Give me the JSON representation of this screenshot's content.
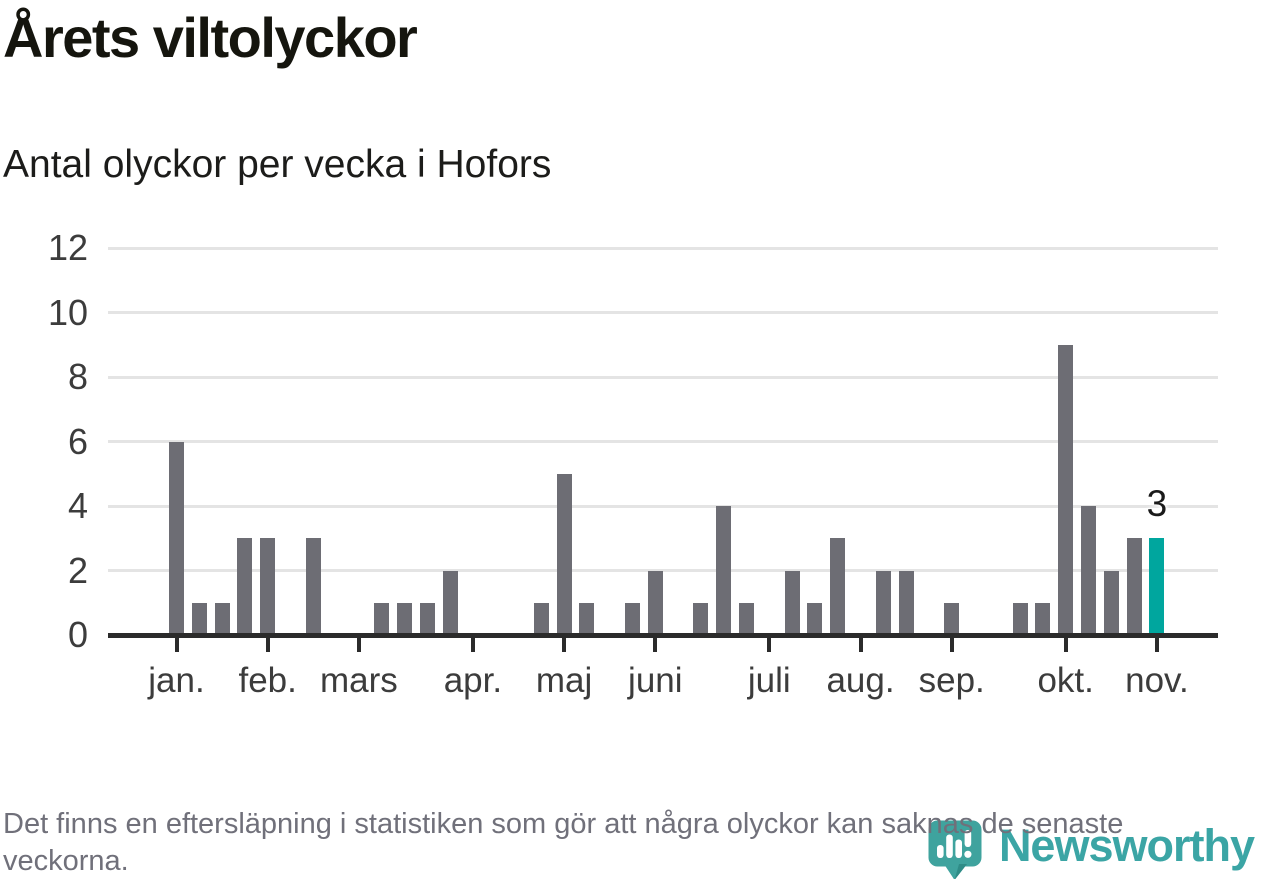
{
  "header": {
    "title": "Årets viltolyckor",
    "subtitle": "Antal olyckor per vecka i Hofors"
  },
  "footer": {
    "note": "Det finns en eftersläpning i statistiken som gör att några olyckor kan saknas de senaste veckorna."
  },
  "logo": {
    "brand": "Newsworthy",
    "icon": "speech-bubble-bar-chart-icon"
  },
  "chart_data": {
    "type": "bar",
    "title": "Årets viltolyckor",
    "subtitle": "Antal olyckor per vecka i Hofors",
    "x_unit": "week",
    "first_week": 1,
    "values": [
      6,
      1,
      1,
      3,
      3,
      0,
      3,
      0,
      0,
      1,
      1,
      1,
      2,
      0,
      0,
      0,
      1,
      5,
      1,
      0,
      1,
      2,
      0,
      1,
      4,
      1,
      0,
      2,
      1,
      3,
      0,
      2,
      2,
      0,
      1,
      0,
      0,
      1,
      1,
      9,
      4,
      2,
      3,
      3
    ],
    "highlight_week": 44,
    "annotation": {
      "text": "3",
      "week": 44,
      "value": 3
    },
    "month_ticks": [
      {
        "label": "jan.",
        "week": 1
      },
      {
        "label": "feb.",
        "week": 5
      },
      {
        "label": "mars",
        "week": 9
      },
      {
        "label": "apr.",
        "week": 14
      },
      {
        "label": "maj",
        "week": 18
      },
      {
        "label": "juni",
        "week": 22
      },
      {
        "label": "juli",
        "week": 27
      },
      {
        "label": "aug.",
        "week": 31
      },
      {
        "label": "sep.",
        "week": 35
      },
      {
        "label": "okt.",
        "week": 40
      },
      {
        "label": "nov.",
        "week": 44
      }
    ],
    "y_ticks": [
      0,
      2,
      4,
      6,
      8,
      10,
      12
    ],
    "ylim": [
      0,
      12
    ],
    "grid": true,
    "legend": "none",
    "colors": {
      "bar": "#6d6d74",
      "highlight": "#00a69e",
      "gridline": "#e4e4e4",
      "axis": "#2b2b2b",
      "tick_label": "#3c3c3c",
      "logo_teal": "#3fa39e",
      "logo_text_teal": "#3ba5a5"
    }
  }
}
